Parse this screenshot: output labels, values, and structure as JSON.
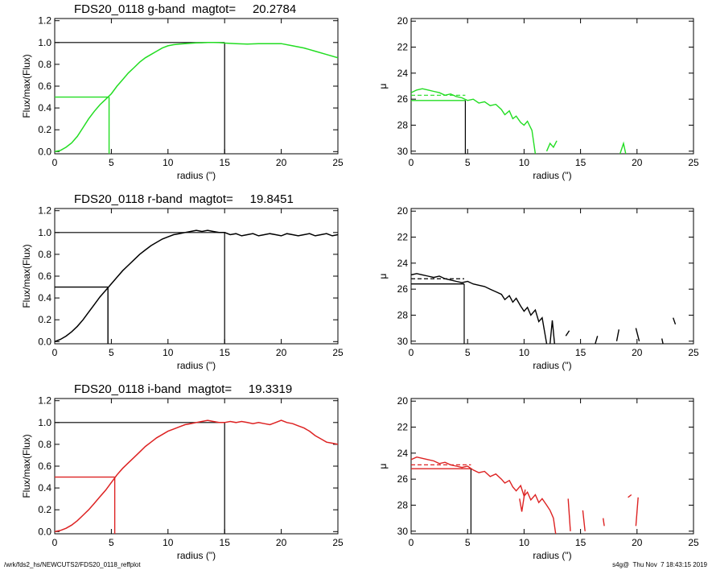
{
  "footer": {
    "left": "/wrk/fds2_hs/NEWCUTS2/FDS20_0118_reffplot",
    "right": "s4g@  Thu Nov  7 18:43:15 2019"
  },
  "chart_data": [
    {
      "type": "line",
      "title": "FDS20_0118 g-band  magtot=     20.2784",
      "xlabel": "radius (\")",
      "ylabel": "Flux/max(Flux)",
      "xlim": [
        0,
        25
      ],
      "ylim": [
        -0.02,
        1.22
      ],
      "xticks": [
        0,
        5,
        10,
        15,
        20,
        25
      ],
      "yticks": [
        0.0,
        0.2,
        0.4,
        0.6,
        0.8,
        1.0,
        1.2
      ],
      "ytick_labels": [
        "0.0",
        "0.2",
        "0.4",
        "0.6",
        "0.8",
        "1.0",
        "1.2"
      ],
      "color": "#22dd22",
      "series": [
        {
          "x": [
            0,
            0.5,
            1,
            1.5,
            2,
            2.5,
            3,
            3.5,
            4,
            4.5,
            5,
            5.5,
            6,
            6.5,
            7,
            7.5,
            8,
            8.5,
            9,
            9.5,
            10,
            10.5,
            11,
            11.5,
            12,
            12.5,
            13,
            13.5,
            14,
            14.5,
            15,
            16,
            17,
            18,
            19,
            20,
            21,
            22,
            23,
            24,
            25
          ],
          "y": [
            0.0,
            0.01,
            0.04,
            0.08,
            0.14,
            0.22,
            0.3,
            0.37,
            0.43,
            0.48,
            0.53,
            0.6,
            0.66,
            0.72,
            0.77,
            0.82,
            0.86,
            0.89,
            0.92,
            0.95,
            0.97,
            0.98,
            0.985,
            0.99,
            0.993,
            0.996,
            0.998,
            1.0,
            1.0,
            0.999,
            0.995,
            0.99,
            0.985,
            0.99,
            0.99,
            0.99,
            0.97,
            0.95,
            0.92,
            0.89,
            0.86
          ]
        }
      ],
      "reference_lines": {
        "x_total": 15,
        "y_total": 1.0,
        "x_half": 4.8,
        "y_half": 0.5
      }
    },
    {
      "type": "line",
      "xlabel": "radius (\")",
      "ylabel": "μ",
      "xlim": [
        0,
        25
      ],
      "ylim": [
        30.2,
        19.8
      ],
      "xticks": [
        0,
        5,
        10,
        15,
        20,
        25
      ],
      "yticks": [
        20,
        22,
        24,
        26,
        28,
        30
      ],
      "color": "#22dd22",
      "series": [
        {
          "segments": [
            {
              "x": [
                0,
                0.5,
                1,
                1.5,
                2,
                2.5,
                3,
                3.5,
                4,
                4.5,
                5,
                5.5,
                6,
                6.5,
                7,
                7.5,
                8,
                8.3,
                8.7,
                9,
                9.3,
                9.7,
                10,
                10.3,
                10.7,
                11
              ],
              "y": [
                25.5,
                25.3,
                25.2,
                25.3,
                25.4,
                25.5,
                25.7,
                25.6,
                25.8,
                25.9,
                26.1,
                26.0,
                26.3,
                26.2,
                26.5,
                26.4,
                26.8,
                27.2,
                26.9,
                27.5,
                27.3,
                27.8,
                28.0,
                27.7,
                28.4,
                30.2
              ]
            },
            {
              "x": [
                12,
                12.3,
                12.6,
                12.9
              ],
              "y": [
                30.0,
                29.4,
                29.7,
                29.2
              ]
            },
            {
              "x": [
                18.5,
                18.8,
                19.0
              ],
              "y": [
                30.2,
                29.4,
                30.2
              ]
            }
          ]
        }
      ],
      "reference_lines": {
        "dashed_y": 25.7,
        "solid_y": 26.1,
        "x_re": 4.8
      }
    },
    {
      "type": "line",
      "title": "FDS20_0118 r-band  magtot=     19.8451",
      "xlabel": "radius (\")",
      "ylabel": "Flux/max(Flux)",
      "xlim": [
        0,
        25
      ],
      "ylim": [
        -0.02,
        1.22
      ],
      "xticks": [
        0,
        5,
        10,
        15,
        20,
        25
      ],
      "yticks": [
        0.0,
        0.2,
        0.4,
        0.6,
        0.8,
        1.0,
        1.2
      ],
      "ytick_labels": [
        "0.0",
        "0.2",
        "0.4",
        "0.6",
        "0.8",
        "1.0",
        "1.2"
      ],
      "color": "#000000",
      "series": [
        {
          "x": [
            0,
            0.5,
            1,
            1.5,
            2,
            2.5,
            3,
            3.5,
            4,
            4.5,
            5,
            5.5,
            6,
            6.5,
            7,
            7.5,
            8,
            8.5,
            9,
            9.5,
            10,
            10.5,
            11,
            11.5,
            12,
            12.5,
            13,
            13.5,
            14,
            14.5,
            15,
            15.5,
            16,
            16.5,
            17,
            17.5,
            18,
            18.5,
            19,
            19.5,
            20,
            20.5,
            21,
            21.5,
            22,
            22.5,
            23,
            23.5,
            24,
            24.5,
            25
          ],
          "y": [
            0.0,
            0.02,
            0.05,
            0.09,
            0.14,
            0.2,
            0.27,
            0.34,
            0.41,
            0.47,
            0.53,
            0.59,
            0.65,
            0.7,
            0.75,
            0.8,
            0.84,
            0.88,
            0.91,
            0.94,
            0.96,
            0.98,
            0.99,
            1.0,
            1.01,
            1.02,
            1.01,
            1.02,
            1.01,
            1.0,
            1.0,
            0.98,
            0.99,
            0.97,
            0.98,
            0.99,
            0.97,
            0.98,
            0.99,
            0.98,
            0.97,
            0.99,
            0.98,
            0.97,
            0.98,
            0.99,
            0.97,
            0.98,
            0.99,
            0.97,
            0.98
          ]
        }
      ],
      "reference_lines": {
        "x_total": 15,
        "y_total": 1.0,
        "x_half": 4.7,
        "y_half": 0.5
      }
    },
    {
      "type": "line",
      "xlabel": "radius (\")",
      "ylabel": "μ",
      "xlim": [
        0,
        25
      ],
      "ylim": [
        30.2,
        19.8
      ],
      "xticks": [
        0,
        5,
        10,
        15,
        20,
        25
      ],
      "yticks": [
        20,
        22,
        24,
        26,
        28,
        30
      ],
      "color": "#000000",
      "series": [
        {
          "segments": [
            {
              "x": [
                0,
                0.5,
                1,
                1.5,
                2,
                2.5,
                3,
                3.5,
                4,
                4.5,
                5,
                5.5,
                6,
                6.5,
                7,
                7.5,
                8,
                8.3,
                8.7,
                9,
                9.3,
                9.7,
                10,
                10.3,
                10.6,
                11,
                11.3,
                11.6,
                12
              ],
              "y": [
                24.9,
                24.8,
                24.9,
                25.0,
                25.1,
                25.0,
                25.2,
                25.3,
                25.4,
                25.5,
                25.4,
                25.6,
                25.7,
                25.8,
                26.0,
                26.2,
                26.4,
                26.8,
                26.5,
                27.0,
                26.7,
                27.3,
                27.7,
                27.4,
                28.0,
                27.6,
                28.5,
                28.2,
                30.2
              ]
            },
            {
              "x": [
                12.3,
                12.5,
                12.7
              ],
              "y": [
                30.2,
                28.4,
                30.2
              ]
            },
            {
              "x": [
                13.7,
                14.0
              ],
              "y": [
                29.6,
                29.2
              ]
            },
            {
              "x": [
                16.3,
                16.5
              ],
              "y": [
                30.2,
                29.6
              ]
            },
            {
              "x": [
                18.2,
                18.4
              ],
              "y": [
                30.0,
                29.1
              ]
            },
            {
              "x": [
                19.9,
                20.2
              ],
              "y": [
                29.0,
                30.0
              ]
            },
            {
              "x": [
                22.2,
                22.3
              ],
              "y": [
                29.8,
                30.2
              ]
            },
            {
              "x": [
                23.2,
                23.4
              ],
              "y": [
                28.2,
                28.7
              ]
            }
          ]
        }
      ],
      "reference_lines": {
        "dashed_y": 25.2,
        "solid_y": 25.6,
        "x_re": 4.7
      }
    },
    {
      "type": "line",
      "title": "FDS20_0118 i-band  magtot=     19.3319",
      "xlabel": "radius (\")",
      "ylabel": "Flux/max(Flux)",
      "xlim": [
        0,
        25
      ],
      "ylim": [
        -0.02,
        1.22
      ],
      "xticks": [
        0,
        5,
        10,
        15,
        20,
        25
      ],
      "yticks": [
        0.0,
        0.2,
        0.4,
        0.6,
        0.8,
        1.0,
        1.2
      ],
      "ytick_labels": [
        "0.0",
        "0.2",
        "0.4",
        "0.6",
        "0.8",
        "1.0",
        "1.2"
      ],
      "color": "#dd2222",
      "series": [
        {
          "x": [
            0,
            0.5,
            1,
            1.5,
            2,
            2.5,
            3,
            3.5,
            4,
            4.5,
            5,
            5.5,
            6,
            6.5,
            7,
            7.5,
            8,
            8.5,
            9,
            9.5,
            10,
            10.5,
            11,
            11.5,
            12,
            12.5,
            13,
            13.5,
            14,
            14.5,
            15,
            15.5,
            16,
            16.5,
            17,
            17.5,
            18,
            18.5,
            19,
            19.5,
            20,
            20.5,
            21,
            21.5,
            22,
            22.5,
            23,
            23.5,
            24,
            24.5,
            25
          ],
          "y": [
            0.0,
            0.01,
            0.03,
            0.06,
            0.1,
            0.15,
            0.2,
            0.26,
            0.32,
            0.38,
            0.45,
            0.52,
            0.58,
            0.63,
            0.68,
            0.73,
            0.78,
            0.82,
            0.86,
            0.89,
            0.92,
            0.94,
            0.96,
            0.98,
            0.99,
            1.0,
            1.01,
            1.02,
            1.01,
            1.0,
            1.0,
            1.01,
            1.0,
            1.01,
            1.0,
            0.99,
            1.0,
            0.99,
            0.98,
            1.0,
            1.02,
            1.0,
            0.99,
            0.97,
            0.95,
            0.92,
            0.88,
            0.85,
            0.82,
            0.81,
            0.8
          ]
        }
      ],
      "reference_lines": {
        "x_total": 15,
        "y_total": 1.0,
        "x_half": 5.3,
        "y_half": 0.5
      }
    },
    {
      "type": "line",
      "xlabel": "radius (\")",
      "ylabel": "μ",
      "xlim": [
        0,
        25
      ],
      "ylim": [
        30.2,
        19.8
      ],
      "xticks": [
        0,
        5,
        10,
        15,
        20,
        25
      ],
      "yticks": [
        20,
        22,
        24,
        26,
        28,
        30
      ],
      "color": "#dd2222",
      "series": [
        {
          "segments": [
            {
              "x": [
                0,
                0.5,
                1,
                1.5,
                2,
                2.5,
                3,
                3.5,
                4,
                4.5,
                5,
                5.5,
                6,
                6.5,
                7,
                7.5,
                8,
                8.3,
                8.7,
                9,
                9.3,
                9.7,
                10,
                10.3,
                10.6,
                11,
                11.3,
                11.6,
                12,
                12.3,
                12.6,
                12.8
              ],
              "y": [
                24.5,
                24.3,
                24.4,
                24.5,
                24.6,
                24.8,
                24.7,
                24.9,
                25.0,
                25.1,
                25.0,
                25.3,
                25.5,
                25.4,
                25.8,
                25.6,
                26.0,
                26.3,
                26.1,
                26.6,
                26.9,
                26.5,
                27.3,
                27.0,
                27.6,
                27.2,
                27.8,
                27.5,
                28.0,
                28.4,
                29.0,
                30.2
              ]
            },
            {
              "x": [
                9.6,
                9.8,
                10.1
              ],
              "y": [
                27.5,
                28.5,
                26.8
              ]
            },
            {
              "x": [
                13.9,
                14.1
              ],
              "y": [
                27.5,
                30.0
              ]
            },
            {
              "x": [
                15.2,
                15.4
              ],
              "y": [
                28.4,
                30.0
              ]
            },
            {
              "x": [
                17.0,
                17.1
              ],
              "y": [
                29.0,
                29.6
              ]
            },
            {
              "x": [
                19.2,
                19.5
              ],
              "y": [
                27.4,
                27.2
              ]
            },
            {
              "x": [
                19.9,
                20.1
              ],
              "y": [
                29.6,
                27.4
              ]
            }
          ]
        }
      ],
      "reference_lines": {
        "dashed_y": 24.9,
        "solid_y": 25.2,
        "x_re": 5.3
      }
    }
  ]
}
